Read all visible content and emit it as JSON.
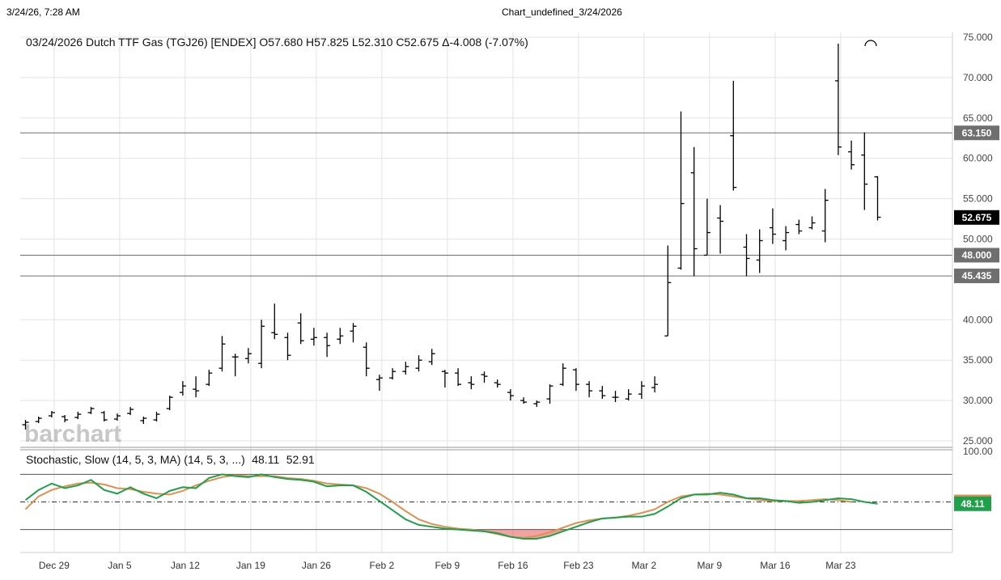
{
  "header": {
    "timestamp": "3/24/26, 7:28 AM",
    "title": "Chart_undefined_3/24/2026"
  },
  "watermark": "barchart",
  "chart_data": [
    {
      "type": "ohlc",
      "title": "03/24/2026 Dutch TTF Gas (TGJ26) [ENDEX] O57.680 H57.825 L52.310 C52.675 Δ-4.008 (-7.07%)",
      "x_tick_labels": [
        "Dec 29",
        "Jan 5",
        "Jan 12",
        "Jan 19",
        "Jan 26",
        "Feb 2",
        "Feb 9",
        "Feb 16",
        "Feb 23",
        "Mar 2",
        "Mar 9",
        "Mar 16",
        "Mar 23"
      ],
      "y_tick_labels": [
        "75.000",
        "70.000",
        "65.000",
        "60.000",
        "55.000",
        "50.000",
        "40.000",
        "35.000",
        "30.000",
        "25.000"
      ],
      "ylim": [
        24.2,
        75.6
      ],
      "grid": true,
      "horizontal_lines": [
        {
          "value": 63.15,
          "label": "63.150",
          "color": "#6f6f6f"
        },
        {
          "value": 48.0,
          "label": "48.000",
          "color": "#6f6f6f"
        },
        {
          "value": 45.435,
          "label": "45.435",
          "color": "#6f6f6f"
        }
      ],
      "last_price": {
        "value": 52.675,
        "label": "52.675",
        "color": "#000000"
      },
      "bars": [
        {
          "h": 27.6,
          "l": 26.4,
          "o": 27.0,
          "c": 27.3
        },
        {
          "h": 28.0,
          "l": 27.2,
          "o": 27.4,
          "c": 27.8
        },
        {
          "h": 28.7,
          "l": 27.9,
          "o": 28.1,
          "c": 28.5
        },
        {
          "h": 28.2,
          "l": 27.3,
          "o": 28.0,
          "c": 27.6
        },
        {
          "h": 28.6,
          "l": 27.7,
          "o": 27.9,
          "c": 28.3
        },
        {
          "h": 29.2,
          "l": 28.3,
          "o": 28.5,
          "c": 29.0
        },
        {
          "h": 28.7,
          "l": 27.4,
          "o": 28.5,
          "c": 27.6
        },
        {
          "h": 28.4,
          "l": 27.5,
          "o": 27.7,
          "c": 28.1
        },
        {
          "h": 29.2,
          "l": 28.2,
          "o": 28.4,
          "c": 28.9
        },
        {
          "h": 28.0,
          "l": 27.1,
          "o": 27.5,
          "c": 27.8
        },
        {
          "h": 28.6,
          "l": 27.4,
          "o": 27.6,
          "c": 28.3
        },
        {
          "h": 30.6,
          "l": 28.8,
          "o": 29.0,
          "c": 30.4
        },
        {
          "h": 32.4,
          "l": 30.6,
          "o": 31.0,
          "c": 31.8
        },
        {
          "h": 33.0,
          "l": 30.4,
          "o": 31.4,
          "c": 31.2
        },
        {
          "h": 33.8,
          "l": 31.8,
          "o": 32.0,
          "c": 33.4
        },
        {
          "h": 38.0,
          "l": 33.6,
          "o": 34.0,
          "c": 37.0
        },
        {
          "h": 35.8,
          "l": 33.0,
          "o": 35.4,
          "c": 35.4
        },
        {
          "h": 36.5,
          "l": 34.6,
          "o": 35.2,
          "c": 35.8
        },
        {
          "h": 40.0,
          "l": 34.0,
          "o": 34.6,
          "c": 39.2
        },
        {
          "h": 42.0,
          "l": 37.6,
          "o": 38.4,
          "c": 38.2
        },
        {
          "h": 38.4,
          "l": 35.0,
          "o": 37.8,
          "c": 35.6
        },
        {
          "h": 40.8,
          "l": 37.0,
          "o": 39.6,
          "c": 37.4
        },
        {
          "h": 39.0,
          "l": 36.8,
          "o": 37.6,
          "c": 37.8
        },
        {
          "h": 38.4,
          "l": 35.4,
          "o": 37.8,
          "c": 36.8
        },
        {
          "h": 39.0,
          "l": 37.0,
          "o": 37.6,
          "c": 38.0
        },
        {
          "h": 39.6,
          "l": 37.2,
          "o": 38.6,
          "c": 39.2
        },
        {
          "h": 37.2,
          "l": 33.0,
          "o": 36.6,
          "c": 34.0
        },
        {
          "h": 33.2,
          "l": 31.2,
          "o": 32.6,
          "c": 32.8
        },
        {
          "h": 34.0,
          "l": 32.6,
          "o": 32.8,
          "c": 33.6
        },
        {
          "h": 34.8,
          "l": 33.2,
          "o": 33.6,
          "c": 34.2
        },
        {
          "h": 35.6,
          "l": 33.6,
          "o": 34.0,
          "c": 35.0
        },
        {
          "h": 36.4,
          "l": 34.4,
          "o": 34.8,
          "c": 35.8
        },
        {
          "h": 33.8,
          "l": 31.6,
          "o": 33.6,
          "c": 33.4
        },
        {
          "h": 34.0,
          "l": 31.8,
          "o": 33.4,
          "c": 32.0
        },
        {
          "h": 33.0,
          "l": 31.4,
          "o": 32.2,
          "c": 32.0
        },
        {
          "h": 33.6,
          "l": 32.2,
          "o": 33.2,
          "c": 33.0
        },
        {
          "h": 32.6,
          "l": 31.6,
          "o": 32.2,
          "c": 32.0
        },
        {
          "h": 31.4,
          "l": 30.0,
          "o": 31.0,
          "c": 30.6
        },
        {
          "h": 30.4,
          "l": 29.6,
          "o": 30.0,
          "c": 29.8
        },
        {
          "h": 30.0,
          "l": 29.2,
          "o": 29.6,
          "c": 29.8
        },
        {
          "h": 32.0,
          "l": 29.6,
          "o": 30.2,
          "c": 31.8
        },
        {
          "h": 34.6,
          "l": 31.8,
          "o": 32.0,
          "c": 34.0
        },
        {
          "h": 34.0,
          "l": 31.2,
          "o": 33.8,
          "c": 32.0
        },
        {
          "h": 32.4,
          "l": 30.4,
          "o": 32.0,
          "c": 31.2
        },
        {
          "h": 31.8,
          "l": 30.2,
          "o": 31.2,
          "c": 30.6
        },
        {
          "h": 31.2,
          "l": 29.8,
          "o": 30.4,
          "c": 30.4
        },
        {
          "h": 31.4,
          "l": 30.0,
          "o": 30.2,
          "c": 30.8
        },
        {
          "h": 32.4,
          "l": 30.2,
          "o": 30.8,
          "c": 31.8
        },
        {
          "h": 33.0,
          "l": 31.0,
          "o": 31.6,
          "c": 32.0
        },
        {
          "h": 49.2,
          "l": 38.0,
          "o": 38.0,
          "c": 44.6
        },
        {
          "h": 65.8,
          "l": 46.2,
          "o": 46.4,
          "c": 54.4
        },
        {
          "h": 61.4,
          "l": 45.4,
          "o": 58.2,
          "c": 48.8
        },
        {
          "h": 55.0,
          "l": 48.0,
          "o": 48.0,
          "c": 50.8
        },
        {
          "h": 54.2,
          "l": 48.2,
          "o": 52.6,
          "c": 52.2
        },
        {
          "h": 69.6,
          "l": 56.0,
          "o": 62.8,
          "c": 56.4
        },
        {
          "h": 50.6,
          "l": 45.4,
          "o": 49.0,
          "c": 47.6
        },
        {
          "h": 51.2,
          "l": 45.8,
          "o": 47.4,
          "c": 49.8
        },
        {
          "h": 53.8,
          "l": 49.4,
          "o": 51.4,
          "c": 50.6
        },
        {
          "h": 51.6,
          "l": 48.6,
          "o": 49.8,
          "c": 50.8
        },
        {
          "h": 52.4,
          "l": 50.6,
          "o": 51.8,
          "c": 51.0
        },
        {
          "h": 52.8,
          "l": 51.2,
          "o": 51.4,
          "c": 52.0
        },
        {
          "h": 56.2,
          "l": 49.6,
          "o": 51.0,
          "c": 54.8
        },
        {
          "h": 74.2,
          "l": 60.4,
          "o": 69.6,
          "c": 61.4
        },
        {
          "h": 62.2,
          "l": 58.6,
          "o": 60.8,
          "c": 59.2
        },
        {
          "h": 63.2,
          "l": 53.6,
          "o": 60.4,
          "c": 56.8
        },
        {
          "h": 57.8,
          "l": 52.3,
          "o": 57.7,
          "c": 52.7
        }
      ]
    },
    {
      "type": "line",
      "title": "Stochastic, Slow (14, 5, 3, MA) (14, 5, 3, ...)",
      "ylim": [
        -5,
        105
      ],
      "y_tick_labels": [
        "100.00"
      ],
      "overbought": 80,
      "oversold": 20,
      "series": [
        {
          "name": "48.11",
          "color": "#1fa04a",
          "values": [
            52,
            63,
            70,
            65,
            68,
            74,
            63,
            59,
            66,
            59,
            54,
            62,
            66,
            65,
            76,
            80,
            78,
            77,
            80,
            77,
            75,
            74,
            72,
            67,
            68,
            68,
            61,
            51,
            41,
            31,
            25,
            23,
            21,
            20,
            19,
            18,
            16,
            12,
            10,
            10,
            13,
            18,
            23,
            28,
            32,
            33,
            34,
            34,
            37,
            45,
            54,
            58,
            58,
            60,
            58,
            54,
            54,
            52,
            51,
            49,
            50,
            52,
            54,
            53,
            50,
            48
          ]
        },
        {
          "name": "52.91",
          "color": "#e09050",
          "values": [
            42,
            56,
            63,
            67,
            70,
            71,
            69,
            65,
            64,
            61,
            59,
            58,
            62,
            68,
            73,
            77,
            79,
            78,
            78,
            78,
            76,
            75,
            73,
            70,
            69,
            68,
            65,
            59,
            50,
            40,
            31,
            26,
            23,
            21,
            20,
            18,
            15,
            12,
            11,
            13,
            17,
            22,
            27,
            30,
            32,
            33,
            35,
            38,
            42,
            50,
            56,
            58,
            59,
            58,
            56,
            54,
            52,
            51,
            51,
            51,
            52,
            53,
            52,
            50
          ]
        }
      ]
    }
  ]
}
